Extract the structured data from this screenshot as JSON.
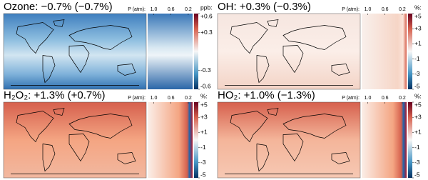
{
  "chart_data": [
    {
      "type": "map",
      "title": "Ozone: −0.7% (−0.7%)",
      "xlabel": "P (atm):",
      "xlim": [
        1.14,
        0.1
      ],
      "xticks": [
        {
          "value": 1,
          "label": "1.0"
        },
        0.6,
        0.2
      ],
      "colorbar_label": "ppb:",
      "clim": [
        -0.6,
        0.6
      ],
      "cticks": [
        {
          "value": 0.6,
          "label": "+0.6"
        },
        {
          "value": 0.3,
          "label": "+0.3"
        },
        -0.3,
        -0.6
      ]
    },
    {
      "type": "map",
      "title": "OH: +0.3% (−0.3%)",
      "xlabel": "P (atm):",
      "xlim": [
        1.14,
        0.1
      ],
      "xticks": [
        {
          "value": 1,
          "label": "1.0"
        },
        0.6,
        0.2
      ],
      "colorbar_label": "%:",
      "clim": [
        -5,
        5
      ],
      "cticks": [
        {
          "value": 5,
          "label": "+5"
        },
        {
          "value": 3,
          "label": "+3"
        },
        {
          "value": 1,
          "label": "+1"
        },
        -1,
        -3,
        -5
      ]
    },
    {
      "type": "map",
      "title": "H₂O₂: +1.3% (+0.7%)",
      "xlabel": "P (atm):",
      "xlim": [
        1.14,
        0.1
      ],
      "xticks": [
        {
          "value": 1,
          "label": "1.0"
        },
        0.6,
        0.2
      ],
      "colorbar_label": "%:",
      "clim": [
        -5,
        5
      ],
      "cticks": [
        {
          "value": 5,
          "label": "+5"
        },
        {
          "value": 3,
          "label": "+3"
        },
        {
          "value": 1,
          "label": "+1"
        },
        -1,
        -3,
        -5
      ]
    },
    {
      "type": "map",
      "title": "HO₂: +1.0% (−1.3%)",
      "xlabel": "P (atm):",
      "xlim": [
        1.14,
        0.1
      ],
      "xticks": [
        {
          "value": 1,
          "label": "1.0"
        },
        0.6,
        0.2
      ],
      "colorbar_label": "%:",
      "clim": [
        -5,
        5
      ],
      "cticks": [
        {
          "value": 5,
          "label": "+5"
        },
        {
          "value": 3,
          "label": "+3"
        },
        {
          "value": 1,
          "label": "+1"
        },
        -1,
        -3,
        -5
      ]
    }
  ]
}
